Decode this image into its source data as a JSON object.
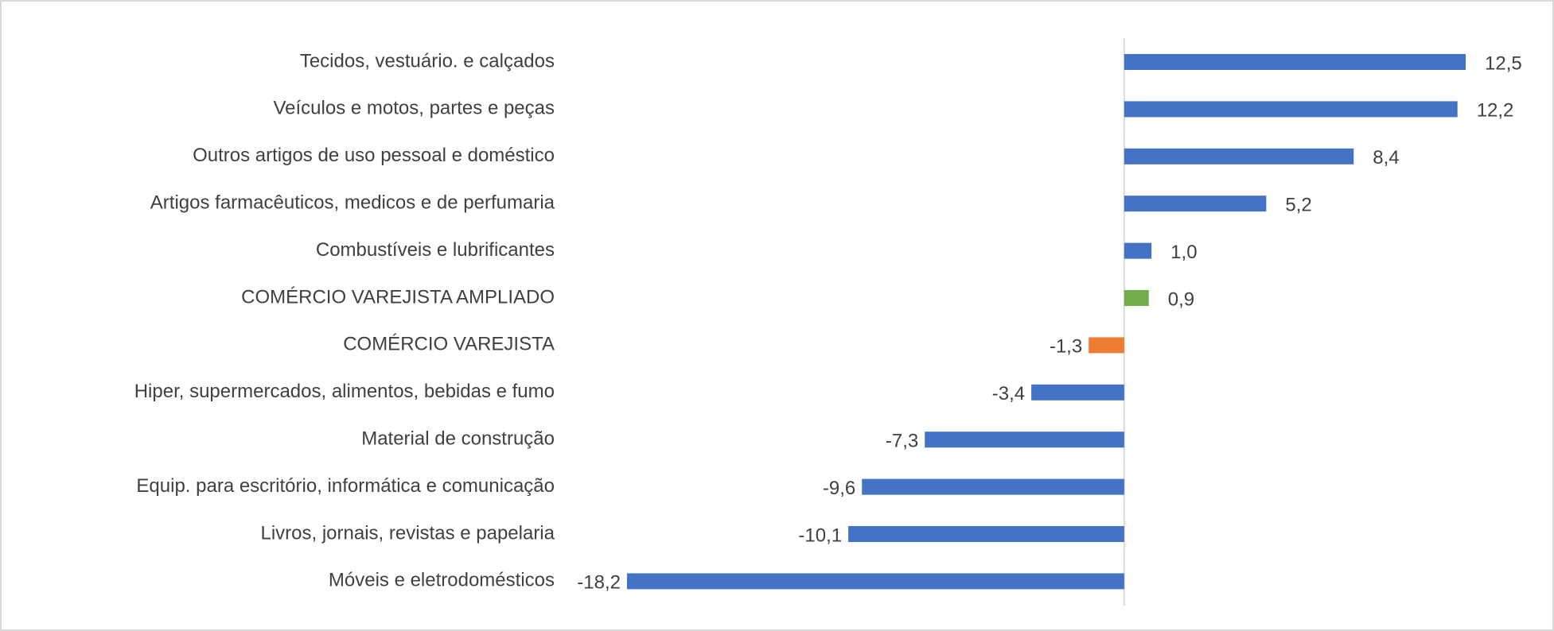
{
  "chart_data": {
    "type": "bar",
    "orientation": "horizontal",
    "categories": [
      "Tecidos, vestuário. e calçados",
      "Veículos e motos, partes e peças",
      "Outros artigos de uso pessoal e doméstico",
      "Artigos farmacêuticos, medicos e de perfumaria",
      "Combustíveis e lubrificantes",
      "COMÉRCIO VAREJISTA AMPLIADO",
      "COMÉRCIO VAREJISTA",
      "Hiper, supermercados, alimentos, bebidas e fumo",
      "Material de construção",
      "Equip.  para escritório, informática e comunicação",
      "Livros, jornais, revistas e papelaria",
      "Móveis e eletrodomésticos"
    ],
    "values": [
      12.5,
      12.2,
      8.4,
      5.2,
      1.0,
      0.9,
      -1.3,
      -3.4,
      -7.3,
      -9.6,
      -10.1,
      -18.2
    ],
    "value_labels": [
      "12,5",
      "12,2",
      "8,4",
      "5,2",
      "1,0",
      "0,9",
      "-1,3",
      "-3,4",
      "-7,3",
      "-9,6",
      "-10,1",
      "-18,2"
    ],
    "colors": [
      "#4472c4",
      "#4472c4",
      "#4472c4",
      "#4472c4",
      "#4472c4",
      "#70ad47",
      "#ed7d31",
      "#4472c4",
      "#4472c4",
      "#4472c4",
      "#4472c4",
      "#4472c4"
    ]
  }
}
